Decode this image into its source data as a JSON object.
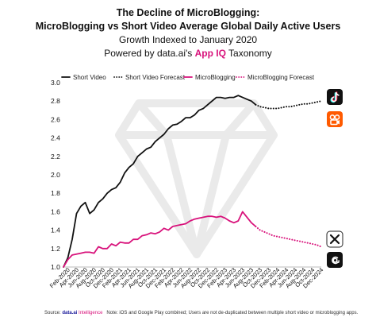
{
  "header": {
    "title_line1": "The Decline of MicroBlogging:",
    "title_line2": "MicroBlogging vs Short Video Average Global Daily Active Users",
    "subtitle": "Growth Indexed to January 2020",
    "powered_prefix": "Powered by data.ai's ",
    "powered_brand": "App IQ",
    "powered_suffix": " Taxonomy"
  },
  "colors": {
    "short_video": "#111111",
    "microblogging": "#d8127b",
    "axis": "#bbbbbb"
  },
  "icons": [
    "tiktok-icon",
    "kuaishou-icon",
    "x-icon",
    "threads-icon"
  ],
  "footer": {
    "source_label": "Source: ",
    "source_brand_a": "data.ai ",
    "source_brand_b": "Intelligence",
    "note": "Note: iOS and Google Play combined; Users are not de-duplicated between multiple short video or microblogging apps."
  },
  "chart_data": {
    "type": "line",
    "ylim": [
      1.0,
      3.0
    ],
    "yticks": [
      "1.0",
      "1.2",
      "1.4",
      "1.6",
      "1.8",
      "2.0",
      "2.2",
      "2.4",
      "2.6",
      "2.8",
      "3.0"
    ],
    "categories": [
      "Feb-2020",
      "Apr-2020",
      "Jun-2020",
      "Aug-2020",
      "Oct-2020",
      "Dec-2020",
      "Feb-2021",
      "Apr-2021",
      "Jun-2021",
      "Aug-2021",
      "Oct-2021",
      "Dec-2021",
      "Feb-2022",
      "Apr-2022",
      "Jun-2022",
      "Aug-2022",
      "Oct-2022",
      "Dec-2022",
      "Feb-2023",
      "Apr-2023",
      "Jun-2023",
      "Aug-2023",
      "Oct-2023",
      "Dec-2023",
      "Feb-2024",
      "Apr-2024",
      "Jun-2024",
      "Aug-2024",
      "Oct-2024",
      "Dec-2024"
    ],
    "legend": [
      "Short Video",
      "Short Video Forecast",
      "MicroBlogging",
      "MicroBlogging Forecast"
    ],
    "series": [
      {
        "name": "Short Video",
        "style": "solid",
        "color": "#111111",
        "x": [
          "2020-01",
          "2020-02",
          "2020-03",
          "2020-04",
          "2020-05",
          "2020-06",
          "2020-07",
          "2020-08",
          "2020-09",
          "2020-10",
          "2020-11",
          "2020-12",
          "2021-01",
          "2021-02",
          "2021-03",
          "2021-04",
          "2021-05",
          "2021-06",
          "2021-07",
          "2021-08",
          "2021-09",
          "2021-10",
          "2021-11",
          "2021-12",
          "2022-01",
          "2022-02",
          "2022-03",
          "2022-04",
          "2022-05",
          "2022-06",
          "2022-07",
          "2022-08",
          "2022-09",
          "2022-10",
          "2022-11",
          "2022-12",
          "2023-01",
          "2023-02",
          "2023-03",
          "2023-04",
          "2023-05",
          "2023-06",
          "2023-07",
          "2023-08",
          "2023-09"
        ],
        "values": [
          1.0,
          1.1,
          1.3,
          1.58,
          1.66,
          1.7,
          1.58,
          1.62,
          1.7,
          1.74,
          1.8,
          1.84,
          1.86,
          1.92,
          2.02,
          2.08,
          2.12,
          2.2,
          2.24,
          2.28,
          2.3,
          2.36,
          2.4,
          2.44,
          2.5,
          2.54,
          2.55,
          2.58,
          2.62,
          2.62,
          2.65,
          2.7,
          2.72,
          2.76,
          2.8,
          2.84,
          2.84,
          2.83,
          2.84,
          2.84,
          2.86,
          2.84,
          2.82,
          2.8,
          2.76
        ]
      },
      {
        "name": "Short Video Forecast",
        "style": "dotted",
        "color": "#111111",
        "x": [
          "2023-09",
          "2023-10",
          "2023-11",
          "2023-12",
          "2024-01",
          "2024-02",
          "2024-03",
          "2024-04",
          "2024-05",
          "2024-06",
          "2024-07",
          "2024-08",
          "2024-09",
          "2024-10",
          "2024-11",
          "2024-12"
        ],
        "values": [
          2.76,
          2.74,
          2.73,
          2.72,
          2.72,
          2.72,
          2.73,
          2.74,
          2.74,
          2.75,
          2.76,
          2.77,
          2.77,
          2.78,
          2.79,
          2.8
        ]
      },
      {
        "name": "MicroBlogging",
        "style": "solid",
        "color": "#d8127b",
        "x": [
          "2020-01",
          "2020-02",
          "2020-03",
          "2020-04",
          "2020-05",
          "2020-06",
          "2020-07",
          "2020-08",
          "2020-09",
          "2020-10",
          "2020-11",
          "2020-12",
          "2021-01",
          "2021-02",
          "2021-03",
          "2021-04",
          "2021-05",
          "2021-06",
          "2021-07",
          "2021-08",
          "2021-09",
          "2021-10",
          "2021-11",
          "2021-12",
          "2022-01",
          "2022-02",
          "2022-03",
          "2022-04",
          "2022-05",
          "2022-06",
          "2022-07",
          "2022-08",
          "2022-09",
          "2022-10",
          "2022-11",
          "2022-12",
          "2023-01",
          "2023-02",
          "2023-03",
          "2023-04",
          "2023-05",
          "2023-06",
          "2023-07",
          "2023-08",
          "2023-09"
        ],
        "values": [
          1.0,
          1.08,
          1.13,
          1.14,
          1.15,
          1.16,
          1.16,
          1.15,
          1.22,
          1.2,
          1.2,
          1.25,
          1.23,
          1.27,
          1.26,
          1.26,
          1.3,
          1.3,
          1.34,
          1.35,
          1.37,
          1.36,
          1.38,
          1.42,
          1.4,
          1.44,
          1.45,
          1.46,
          1.47,
          1.5,
          1.52,
          1.53,
          1.54,
          1.55,
          1.55,
          1.54,
          1.55,
          1.53,
          1.5,
          1.48,
          1.5,
          1.6,
          1.54,
          1.48,
          1.44
        ]
      },
      {
        "name": "MicroBlogging Forecast",
        "style": "dotted",
        "color": "#d8127b",
        "x": [
          "2023-09",
          "2023-10",
          "2023-11",
          "2023-12",
          "2024-01",
          "2024-02",
          "2024-03",
          "2024-04",
          "2024-05",
          "2024-06",
          "2024-07",
          "2024-08",
          "2024-09",
          "2024-10",
          "2024-11",
          "2024-12"
        ],
        "values": [
          1.44,
          1.4,
          1.38,
          1.36,
          1.34,
          1.33,
          1.32,
          1.31,
          1.3,
          1.29,
          1.28,
          1.27,
          1.26,
          1.25,
          1.24,
          1.22
        ]
      }
    ]
  }
}
